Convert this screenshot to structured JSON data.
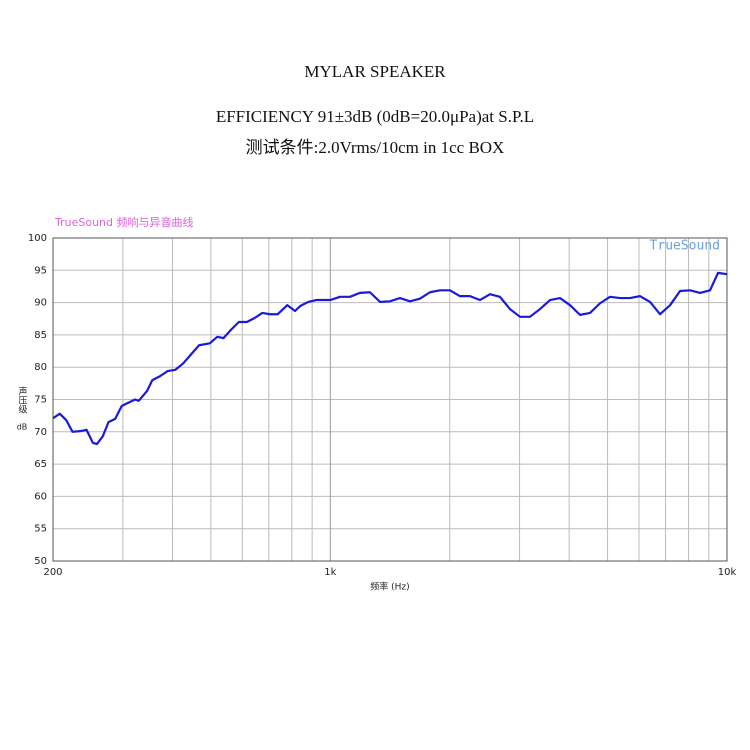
{
  "chart_data": {
    "type": "line",
    "title": "MYLAR SPEAKER",
    "subtitle": "EFFICIENCY 91±3dB (0dB=20.0μPa)at S.P.L",
    "subtitle2": "测试条件:2.0Vrms/10cm in 1cc BOX",
    "chart_label": "TrueSound 频响与异音曲线",
    "watermark": "TrueSound",
    "x_label": "频率 (Hz)",
    "y_label": "声压级",
    "y_unit": "dB",
    "x_log": true,
    "grid": true,
    "xlim": [
      200,
      10000
    ],
    "xticks": [
      {
        "value": 200,
        "label": "200"
      },
      {
        "value": 1000,
        "label": "1k"
      },
      {
        "value": 10000,
        "label": "10k"
      }
    ],
    "x_minor_ticks": [
      300,
      400,
      500,
      600,
      700,
      800,
      900,
      2000,
      3000,
      4000,
      5000,
      6000,
      7000,
      8000,
      9000
    ],
    "ylim": [
      50,
      100
    ],
    "yticks": [
      50,
      55,
      60,
      65,
      70,
      75,
      80,
      85,
      90,
      95,
      100
    ],
    "x": [
      200,
      208,
      216,
      224,
      234,
      243,
      252,
      258,
      267,
      276,
      287,
      298,
      312,
      322,
      329,
      345,
      356,
      372,
      389,
      407,
      426,
      446,
      467,
      497,
      519,
      538,
      562,
      588,
      616,
      644,
      674,
      705,
      737,
      779,
      815,
      841,
      880,
      921,
      1000,
      1058,
      1121,
      1188,
      1259,
      1335,
      1414,
      1498,
      1588,
      1683,
      1783,
      1890,
      2003,
      2123,
      2249,
      2384,
      2526,
      2677,
      2837,
      3008,
      3186,
      3378,
      3580,
      3794,
      4021,
      4261,
      4516,
      4786,
      5072,
      5375,
      5696,
      6037,
      6398,
      6780,
      7186,
      7615,
      8070,
      8553,
      9064,
      9493,
      10000
    ],
    "series": [
      {
        "color": "#1a1adb",
        "values": [
          72.1,
          72.8,
          71.8,
          70,
          70.1,
          70.3,
          68.3,
          68.1,
          69.3,
          71.5,
          72,
          74,
          74.6,
          75,
          74.8,
          76.3,
          78,
          78.6,
          79.4,
          79.6,
          80.6,
          82,
          83.4,
          83.7,
          84.7,
          84.5,
          85.8,
          87,
          87,
          87.6,
          88.4,
          88.2,
          88.2,
          89.6,
          88.7,
          89.5,
          90.1,
          90.4,
          90.4,
          90.9,
          90.9,
          91.5,
          91.6,
          90.1,
          90.2,
          90.7,
          90.2,
          90.6,
          91.6,
          91.9,
          91.9,
          91,
          91,
          90.4,
          91.3,
          90.9,
          89,
          87.8,
          87.8,
          89,
          90.4,
          90.7,
          89.6,
          88.1,
          88.4,
          89.9,
          90.9,
          90.7,
          90.7,
          91,
          90.1,
          88.2,
          89.6,
          91.8,
          91.9,
          91.5,
          91.9,
          94.6,
          94.4
        ]
      }
    ]
  }
}
